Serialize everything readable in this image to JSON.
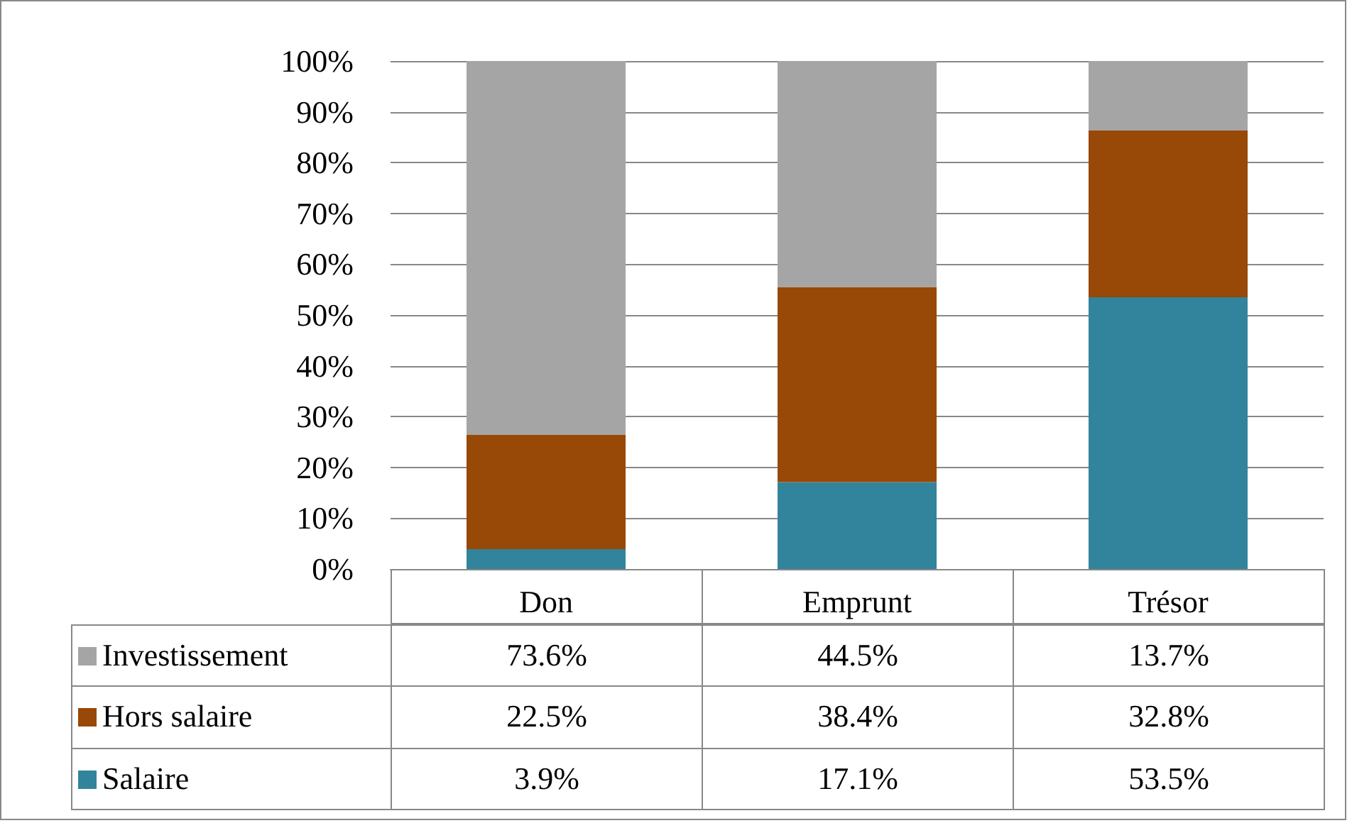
{
  "chart_data": {
    "type": "bar",
    "stacked": true,
    "categories": [
      "Don",
      "Emprunt",
      "Trésor"
    ],
    "series": [
      {
        "name": "Salaire",
        "color": "#31849b",
        "values": [
          3.9,
          17.1,
          53.5
        ],
        "value_labels": [
          "3.9%",
          "17.1%",
          "53.5%"
        ]
      },
      {
        "name": "Hors salaire",
        "color": "#984807",
        "values": [
          22.5,
          38.4,
          32.8
        ],
        "value_labels": [
          "22.5%",
          "38.4%",
          "32.8%"
        ]
      },
      {
        "name": "Investissement",
        "color": "#a5a5a5",
        "values": [
          73.6,
          44.5,
          13.7
        ],
        "value_labels": [
          "73.6%",
          "44.5%",
          "13.7%"
        ]
      }
    ],
    "ylim": [
      0,
      100
    ],
    "yticks": [
      {
        "value": 0,
        "label": "0%"
      },
      {
        "value": 10,
        "label": "10%"
      },
      {
        "value": 20,
        "label": "20%"
      },
      {
        "value": 30,
        "label": "30%"
      },
      {
        "value": 40,
        "label": "40%"
      },
      {
        "value": 50,
        "label": "50%"
      },
      {
        "value": 60,
        "label": "60%"
      },
      {
        "value": 70,
        "label": "70%"
      },
      {
        "value": 80,
        "label": "80%"
      },
      {
        "value": 90,
        "label": "90%"
      },
      {
        "value": 100,
        "label": "100%"
      }
    ],
    "grid": "y",
    "legend": "bottom"
  }
}
